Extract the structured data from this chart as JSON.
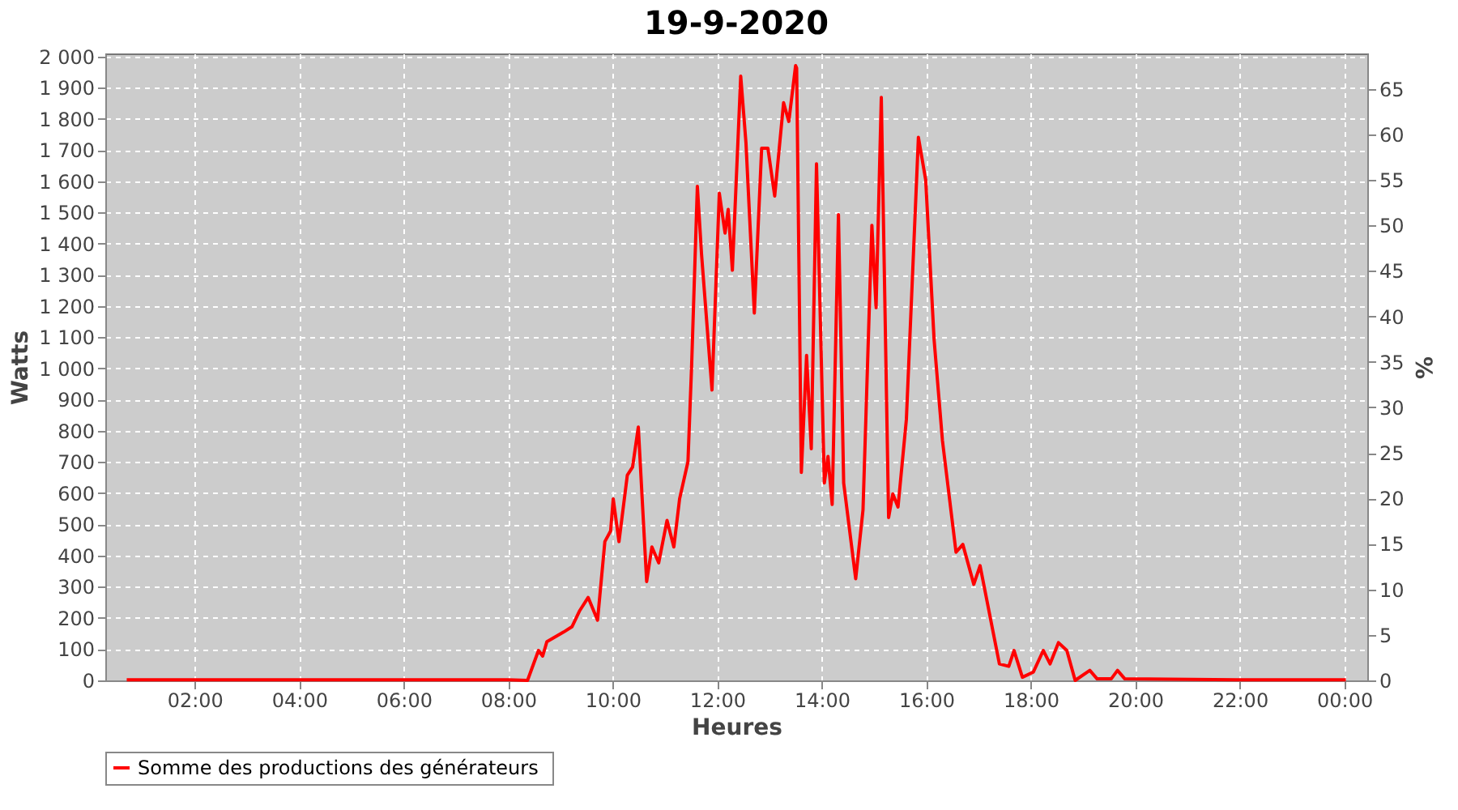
{
  "chart_data": {
    "type": "line",
    "title": "19-9-2020",
    "xlabel": "Heures",
    "ylabel": "Watts",
    "y2label": "%",
    "xlim": [
      0.29,
      24.44
    ],
    "xticks": [
      {
        "value": 2,
        "label": "02:00"
      },
      {
        "value": 4,
        "label": "04:00"
      },
      {
        "value": 6,
        "label": "06:00"
      },
      {
        "value": 8,
        "label": "08:00"
      },
      {
        "value": 10,
        "label": "10:00"
      },
      {
        "value": 12,
        "label": "12:00"
      },
      {
        "value": 14,
        "label": "14:00"
      },
      {
        "value": 16,
        "label": "16:00"
      },
      {
        "value": 18,
        "label": "18:00"
      },
      {
        "value": 20,
        "label": "20:00"
      },
      {
        "value": 22,
        "label": "22:00"
      },
      {
        "value": 24,
        "label": "00:00"
      }
    ],
    "ylim": [
      0,
      2010
    ],
    "yticks": [
      0,
      100,
      200,
      300,
      400,
      500,
      600,
      700,
      800,
      900,
      {
        "value": 1000,
        "label": "1 000"
      },
      {
        "value": 1100,
        "label": "1 100"
      },
      {
        "value": 1200,
        "label": "1 200"
      },
      {
        "value": 1300,
        "label": "1 300"
      },
      {
        "value": 1400,
        "label": "1 400"
      },
      {
        "value": 1500,
        "label": "1 500"
      },
      {
        "value": 1600,
        "label": "1 600"
      },
      {
        "value": 1700,
        "label": "1 700"
      },
      {
        "value": 1800,
        "label": "1 800"
      },
      {
        "value": 1900,
        "label": "1 900"
      },
      {
        "value": 2000,
        "label": "2 000"
      }
    ],
    "y2lim": [
      0,
      68.9
    ],
    "y2ticks": [
      0,
      5,
      10,
      15,
      20,
      25,
      30,
      35,
      40,
      45,
      50,
      55,
      60,
      65
    ],
    "grid": true,
    "legend": "bottom",
    "marker": "none",
    "line_style": "solid",
    "series": [
      {
        "name": "Somme des productions des  générateurs",
        "color": "#ff0000",
        "x": [
          0.7,
          2.0,
          4.0,
          6.0,
          8.0,
          8.37,
          8.58,
          8.66,
          8.74,
          9.06,
          9.22,
          9.37,
          9.53,
          9.71,
          9.85,
          9.96,
          10.01,
          10.12,
          10.28,
          10.38,
          10.49,
          10.65,
          10.75,
          10.88,
          11.04,
          11.17,
          11.28,
          11.44,
          11.51,
          11.62,
          11.7,
          11.9,
          12.04,
          12.15,
          12.21,
          12.29,
          12.45,
          12.55,
          12.71,
          12.85,
          12.97,
          13.1,
          13.27,
          13.37,
          13.5,
          13.52,
          13.61,
          13.71,
          13.8,
          13.9,
          14.05,
          14.12,
          14.2,
          14.32,
          14.42,
          14.65,
          14.79,
          14.96,
          15.04,
          15.14,
          15.28,
          15.36,
          15.46,
          15.62,
          15.85,
          15.99,
          16.15,
          16.31,
          16.57,
          16.7,
          16.91,
          17.03,
          17.26,
          17.4,
          17.58,
          17.68,
          17.84,
          18.05,
          18.24,
          18.37,
          18.53,
          18.69,
          18.85,
          19.13,
          19.27,
          19.54,
          19.66,
          19.8,
          22.0,
          24.03
        ],
        "values": [
          2,
          2,
          2,
          2,
          2,
          0,
          96,
          78,
          124,
          155,
          172,
          224,
          266,
          193,
          445,
          479,
          582,
          445,
          658,
          684,
          812,
          317,
          428,
          377,
          513,
          428,
          582,
          701,
          1008,
          1584,
          1366,
          931,
          1562,
          1434,
          1510,
          1315,
          1937,
          1724,
          1178,
          1706,
          1706,
          1553,
          1852,
          1792,
          1971,
          1963,
          667,
          1042,
          743,
          1656,
          633,
          718,
          564,
          1493,
          633,
          326,
          547,
          1459,
          1195,
          1869,
          522,
          598,
          556,
          837,
          1741,
          1604,
          1093,
          769,
          411,
          436,
          308,
          368,
          172,
          53,
          45,
          96,
          10,
          27,
          96,
          53,
          121,
          96,
          0,
          32,
          5,
          5,
          32,
          5,
          2,
          2
        ]
      }
    ]
  }
}
